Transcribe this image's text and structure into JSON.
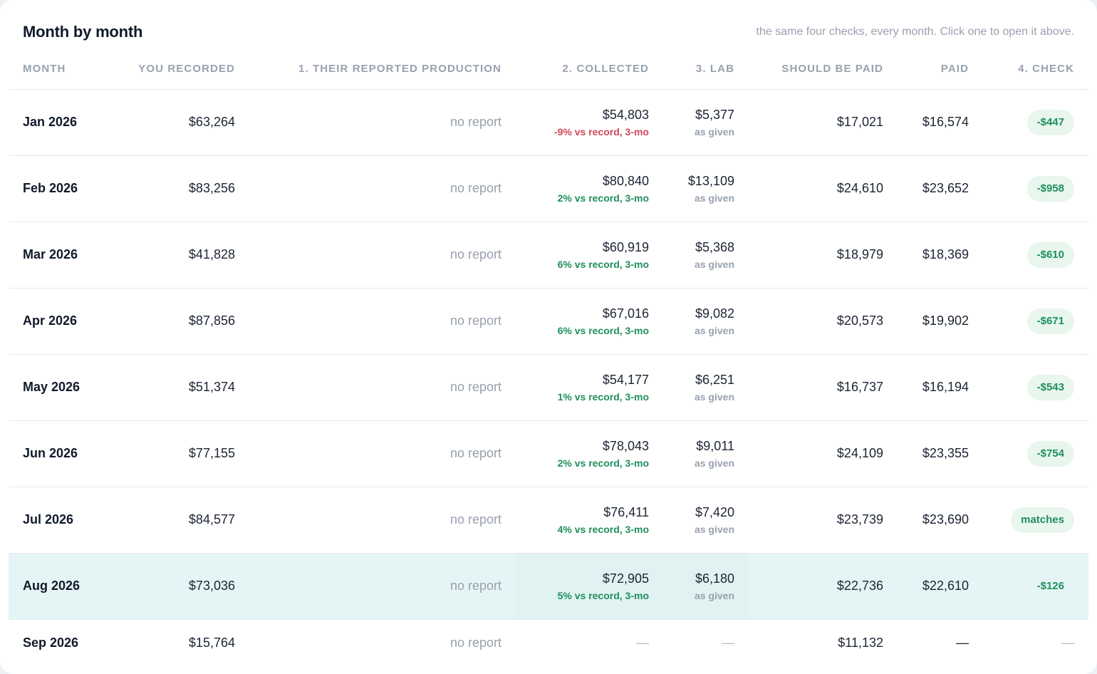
{
  "section": {
    "title": "Month by month",
    "subtitle": "the same four checks, every month. Click one to open it above."
  },
  "columns": {
    "month": "MONTH",
    "recorded": "YOU RECORDED",
    "reported": "1. THEIR REPORTED PRODUCTION",
    "collected": "2. COLLECTED",
    "lab": "3. LAB",
    "should_be_paid": "SHOULD BE PAID",
    "paid": "PAID",
    "check": "4. CHECK"
  },
  "colors": {
    "accent_green": "#1f8f5c",
    "negative_red": "#d0485a",
    "selected_row": "#e5f5f6"
  },
  "rows": [
    {
      "month": "Jan 2026",
      "recorded": "$63,264",
      "reported": "no report",
      "collected": "$54,803",
      "collected_note": "-9% vs record, 3-mo",
      "collected_tone": "neg",
      "lab": "$5,377",
      "lab_note": "as given",
      "should_be_paid": "$17,021",
      "paid": "$16,574",
      "check": "-$447"
    },
    {
      "month": "Feb 2026",
      "recorded": "$83,256",
      "reported": "no report",
      "collected": "$80,840",
      "collected_note": "2% vs record, 3-mo",
      "collected_tone": "pos",
      "lab": "$13,109",
      "lab_note": "as given",
      "should_be_paid": "$24,610",
      "paid": "$23,652",
      "check": "-$958"
    },
    {
      "month": "Mar 2026",
      "recorded": "$41,828",
      "reported": "no report",
      "collected": "$60,919",
      "collected_note": "6% vs record, 3-mo",
      "collected_tone": "pos",
      "lab": "$5,368",
      "lab_note": "as given",
      "should_be_paid": "$18,979",
      "paid": "$18,369",
      "check": "-$610"
    },
    {
      "month": "Apr 2026",
      "recorded": "$87,856",
      "reported": "no report",
      "collected": "$67,016",
      "collected_note": "6% vs record, 3-mo",
      "collected_tone": "pos",
      "lab": "$9,082",
      "lab_note": "as given",
      "should_be_paid": "$20,573",
      "paid": "$19,902",
      "check": "-$671"
    },
    {
      "month": "May 2026",
      "recorded": "$51,374",
      "reported": "no report",
      "collected": "$54,177",
      "collected_note": "1% vs record, 3-mo",
      "collected_tone": "pos",
      "lab": "$6,251",
      "lab_note": "as given",
      "should_be_paid": "$16,737",
      "paid": "$16,194",
      "check": "-$543"
    },
    {
      "month": "Jun 2026",
      "recorded": "$77,155",
      "reported": "no report",
      "collected": "$78,043",
      "collected_note": "2% vs record, 3-mo",
      "collected_tone": "pos",
      "lab": "$9,011",
      "lab_note": "as given",
      "should_be_paid": "$24,109",
      "paid": "$23,355",
      "check": "-$754"
    },
    {
      "month": "Jul 2026",
      "recorded": "$84,577",
      "reported": "no report",
      "collected": "$76,411",
      "collected_note": "4% vs record, 3-mo",
      "collected_tone": "pos",
      "lab": "$7,420",
      "lab_note": "as given",
      "should_be_paid": "$23,739",
      "paid": "$23,690",
      "check": "matches"
    },
    {
      "month": "Aug 2026",
      "recorded": "$73,036",
      "reported": "no report",
      "collected": "$72,905",
      "collected_note": "5% vs record, 3-mo",
      "collected_tone": "pos",
      "lab": "$6,180",
      "lab_note": "as given",
      "should_be_paid": "$22,736",
      "paid": "$22,610",
      "check": "-$126"
    },
    {
      "month": "Sep 2026",
      "recorded": "$15,764",
      "reported": "no report",
      "collected": "—",
      "lab": "—",
      "should_be_paid": "$11,132",
      "paid": "—",
      "check": "—"
    }
  ]
}
